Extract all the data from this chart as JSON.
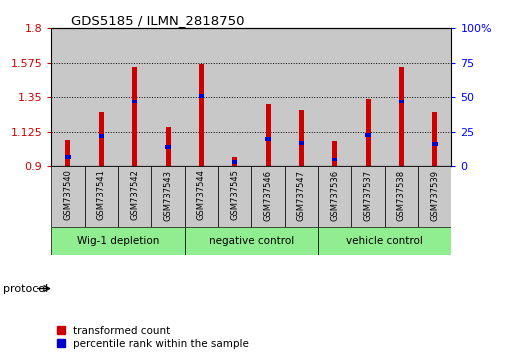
{
  "title": "GDS5185 / ILMN_2818750",
  "samples": [
    "GSM737540",
    "GSM737541",
    "GSM737542",
    "GSM737543",
    "GSM737544",
    "GSM737545",
    "GSM737546",
    "GSM737547",
    "GSM737536",
    "GSM737537",
    "GSM737538",
    "GSM737539"
  ],
  "transformed_count": [
    1.075,
    1.255,
    1.545,
    1.155,
    1.565,
    0.962,
    1.305,
    1.27,
    1.065,
    1.34,
    1.545,
    1.255
  ],
  "percentile_rank": [
    7,
    22,
    47,
    14,
    51,
    3,
    20,
    17,
    5,
    23,
    47,
    16
  ],
  "groups": [
    {
      "label": "Wig-1 depletion",
      "start": 0,
      "end": 3
    },
    {
      "label": "negative control",
      "start": 4,
      "end": 7
    },
    {
      "label": "vehicle control",
      "start": 8,
      "end": 11
    }
  ],
  "bar_color_red": "#CC0000",
  "bar_color_blue": "#0000CC",
  "ylim_left": [
    0.9,
    1.8
  ],
  "ylim_right": [
    0,
    100
  ],
  "yticks_left": [
    0.9,
    1.125,
    1.35,
    1.575,
    1.8
  ],
  "yticks_right": [
    0,
    25,
    50,
    75,
    100
  ],
  "legend_red": "transformed count",
  "legend_blue": "percentile rank within the sample",
  "sample_bg_color": "#C8C8C8",
  "group_color": "#90EE90",
  "base_value": 0.9,
  "bar_width": 0.15
}
